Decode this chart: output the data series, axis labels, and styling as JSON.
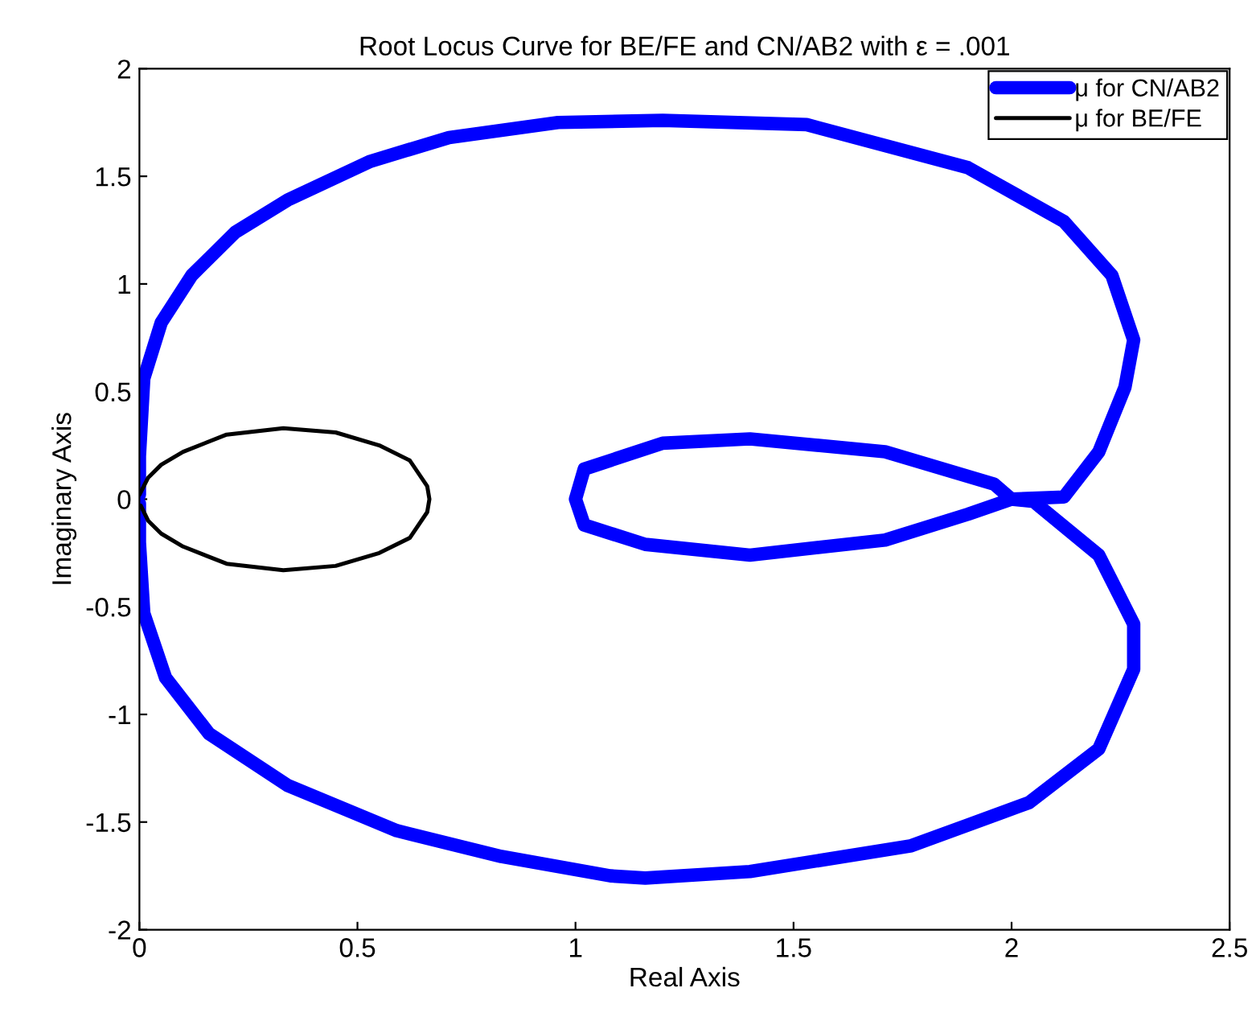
{
  "chart_data": {
    "type": "line",
    "title": "Root Locus Curve for BE/FE and CN/AB2 with ε = .001",
    "xlabel": "Real Axis",
    "ylabel": "Imaginary Axis",
    "xlim": [
      0,
      2.5
    ],
    "ylim": [
      -2,
      2
    ],
    "xticks": [
      0,
      0.5,
      1,
      1.5,
      2,
      2.5
    ],
    "yticks": [
      -2,
      -1.5,
      -1,
      -0.5,
      0,
      0.5,
      1,
      1.5,
      2
    ],
    "grid": false,
    "legend": "top right",
    "marker": "none",
    "line_style": "solid",
    "series": [
      {
        "name": "μ for CN/AB2",
        "color": "#0000ff",
        "x": [
          0,
          0,
          0.01,
          0.05,
          0.12,
          0.22,
          0.34,
          0.53,
          0.71,
          0.96,
          1.2,
          1.53,
          1.9,
          2.12,
          2.23,
          2.28,
          2.26,
          2.2,
          2.12,
          2.0,
          1.9,
          1.71,
          1.4,
          1.16,
          1.02,
          1.0,
          1.02,
          1.2,
          1.4,
          1.71,
          1.96,
          2.0,
          2.05,
          2.2,
          2.28,
          2.28,
          2.2,
          2.04,
          1.77,
          1.4,
          1.16,
          1.08,
          0.83,
          0.59,
          0.34,
          0.16,
          0.06,
          0.01,
          0,
          0
        ],
        "values": [
          0.02,
          0.2,
          0.56,
          0.82,
          1.04,
          1.24,
          1.39,
          1.57,
          1.68,
          1.75,
          1.76,
          1.74,
          1.54,
          1.29,
          1.04,
          0.74,
          0.52,
          0.22,
          0.01,
          0,
          -0.07,
          -0.19,
          -0.26,
          -0.21,
          -0.12,
          0,
          0.14,
          0.26,
          0.28,
          0.22,
          0.07,
          0,
          -0.01,
          -0.26,
          -0.58,
          -0.79,
          -1.16,
          -1.41,
          -1.61,
          -1.73,
          -1.76,
          -1.75,
          -1.66,
          -1.54,
          -1.33,
          -1.09,
          -0.83,
          -0.53,
          -0.2,
          -0.02
        ]
      },
      {
        "name": "μ for BE/FE",
        "color": "#000000",
        "x": [
          0,
          0.02,
          0.05,
          0.1,
          0.2,
          0.33,
          0.45,
          0.55,
          0.62,
          0.66,
          0.665,
          0.66,
          0.62,
          0.55,
          0.45,
          0.33,
          0.2,
          0.1,
          0.05,
          0.02,
          0.003
        ],
        "values": [
          0.02,
          0.1,
          0.16,
          0.22,
          0.3,
          0.33,
          0.31,
          0.25,
          0.18,
          0.06,
          0,
          -0.06,
          -0.18,
          -0.25,
          -0.31,
          -0.33,
          -0.3,
          -0.22,
          -0.16,
          -0.1,
          -0.03
        ]
      }
    ]
  }
}
